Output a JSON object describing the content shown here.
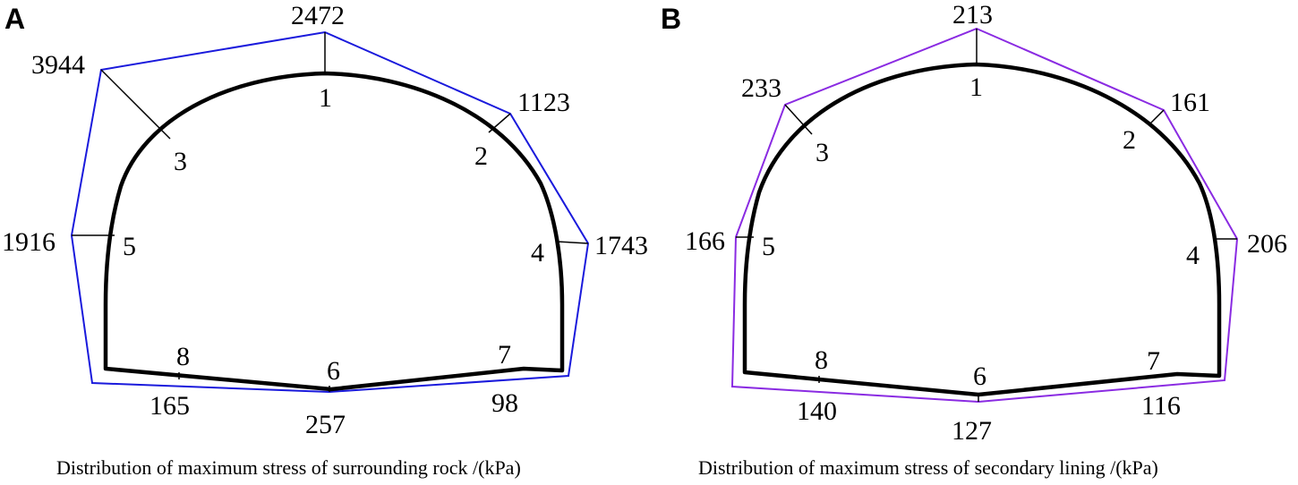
{
  "panels": [
    {
      "letter": "A",
      "caption": "Distribution of maximum stress of surrounding rock /(kPa)",
      "envelope_color": "#1a1adc",
      "points": [
        {
          "id": "1",
          "stress": "2472"
        },
        {
          "id": "2",
          "stress": "1123"
        },
        {
          "id": "3",
          "stress": "3944"
        },
        {
          "id": "4",
          "stress": "1743"
        },
        {
          "id": "5",
          "stress": "1916"
        },
        {
          "id": "6",
          "stress": "257"
        },
        {
          "id": "7",
          "stress": "98"
        },
        {
          "id": "8",
          "stress": "165"
        }
      ]
    },
    {
      "letter": "B",
      "caption": "Distribution of maximum stress of secondary lining /(kPa)",
      "envelope_color": "#8a2be2",
      "points": [
        {
          "id": "1",
          "stress": "213"
        },
        {
          "id": "2",
          "stress": "161"
        },
        {
          "id": "3",
          "stress": "233"
        },
        {
          "id": "4",
          "stress": "206"
        },
        {
          "id": "5",
          "stress": "166"
        },
        {
          "id": "6",
          "stress": "127"
        },
        {
          "id": "7",
          "stress": "116"
        },
        {
          "id": "8",
          "stress": "140"
        }
      ]
    }
  ]
}
